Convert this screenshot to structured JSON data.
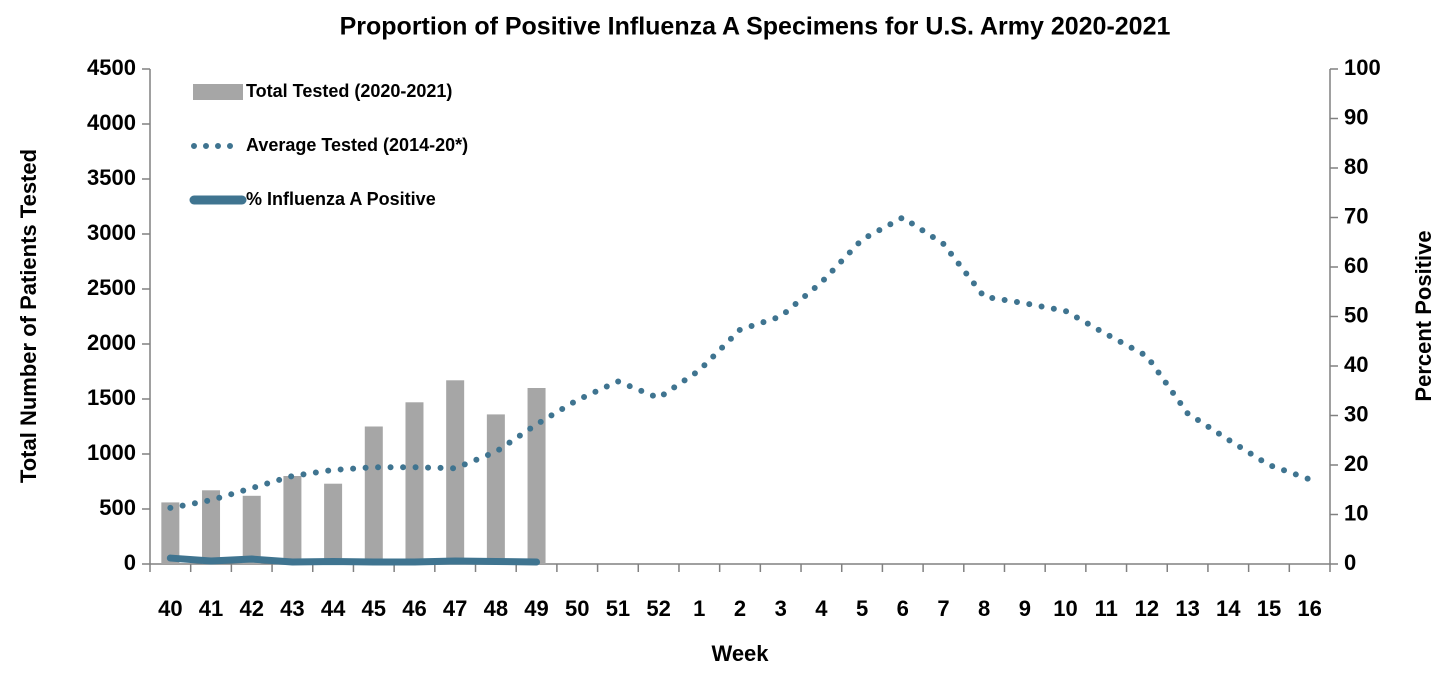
{
  "chart_data": {
    "type": "bar-line",
    "title": "Proportion of Positive Influenza A Specimens for U.S. Army 2020-2021",
    "x_label": "Week",
    "y_label": "Total Number of Patients Tested",
    "y2_label": "Percent Positive",
    "categories": [
      "40",
      "41",
      "42",
      "43",
      "44",
      "45",
      "46",
      "47",
      "48",
      "49",
      "50",
      "51",
      "52",
      "1",
      "2",
      "3",
      "4",
      "5",
      "6",
      "7",
      "8",
      "9",
      "10",
      "11",
      "12",
      "13",
      "14",
      "15",
      "16"
    ],
    "series": [
      {
        "name": "Total Tested (2020-2021)",
        "type": "bar",
        "color": "#a6a6a6",
        "values": [
          560,
          670,
          620,
          800,
          730,
          1250,
          1470,
          1670,
          1360,
          1600,
          null,
          null,
          null,
          null,
          null,
          null,
          null,
          null,
          null,
          null,
          null,
          null,
          null,
          null,
          null,
          null,
          null,
          null,
          null
        ]
      },
      {
        "name": "Average Tested (2014-20*)",
        "type": "dotted-line",
        "color": "#3f7490",
        "values": [
          510,
          580,
          690,
          800,
          855,
          880,
          880,
          870,
          1020,
          1270,
          1490,
          1660,
          1510,
          1760,
          2130,
          2250,
          2560,
          2950,
          3150,
          2910,
          2430,
          2370,
          2300,
          2090,
          1890,
          1370,
          1130,
          900,
          770
        ]
      },
      {
        "name": "% Influenza A Positive",
        "type": "line",
        "color": "#3f7490",
        "axis": "y2",
        "values": [
          1.2,
          0.6,
          1.0,
          0.4,
          0.5,
          0.4,
          0.4,
          0.6,
          0.5,
          0.4,
          null,
          null,
          null,
          null,
          null,
          null,
          null,
          null,
          null,
          null,
          null,
          null,
          null,
          null,
          null,
          null,
          null,
          null,
          null
        ]
      }
    ],
    "ylim": [
      0,
      4500
    ],
    "yticks": [
      0,
      500,
      1000,
      1500,
      2000,
      2500,
      3000,
      3500,
      4000,
      4500
    ],
    "y2lim": [
      0,
      100
    ],
    "y2ticks": [
      0,
      10,
      20,
      30,
      40,
      50,
      60,
      70,
      80,
      90,
      100
    ],
    "legend": "upper left",
    "grid": false
  }
}
